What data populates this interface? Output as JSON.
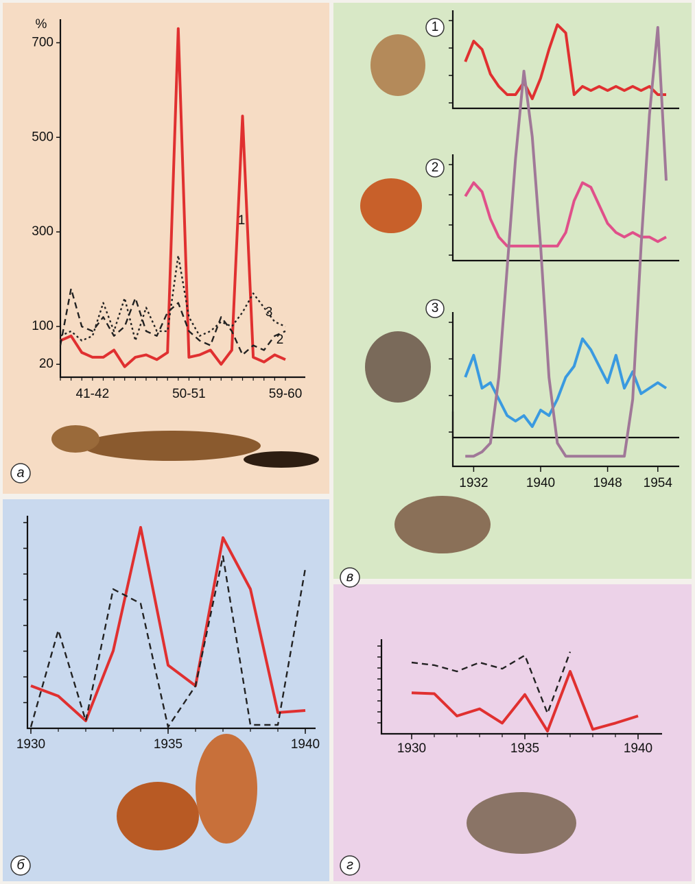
{
  "chart_data": [
    {
      "type": "line",
      "label": "а",
      "y_label": "%",
      "categories": [
        null,
        null,
        null,
        "41-42",
        null,
        null,
        null,
        null,
        null,
        null,
        null,
        null,
        "50-51",
        null,
        null,
        null,
        null,
        null,
        null,
        null,
        null,
        "59-60"
      ],
      "ylim": [
        0,
        760
      ],
      "yticks": [
        20,
        100,
        300,
        500,
        700
      ],
      "series": [
        {
          "name": "1",
          "color": "#e03030",
          "style": "solid",
          "values": [
            70,
            80,
            45,
            35,
            35,
            50,
            15,
            35,
            40,
            30,
            45,
            730,
            35,
            40,
            50,
            20,
            50,
            545,
            35,
            25,
            40,
            30
          ]
        },
        {
          "name": "2",
          "color": "#222222",
          "style": "dashed",
          "values": [
            60,
            180,
            100,
            90,
            120,
            80,
            100,
            160,
            90,
            80,
            130,
            150,
            90,
            70,
            60,
            120,
            90,
            40,
            60,
            50,
            80,
            90
          ]
        },
        {
          "name": "3",
          "color": "#222222",
          "style": "dotted",
          "values": [
            80,
            90,
            70,
            80,
            150,
            90,
            160,
            70,
            140,
            90,
            90,
            250,
            120,
            80,
            90,
            110,
            100,
            130,
            170,
            140,
            110,
            100
          ]
        }
      ]
    },
    {
      "type": "line",
      "label": "в",
      "x": [
        1931,
        1932,
        1933,
        1934,
        1935,
        1936,
        1937,
        1938,
        1939,
        1940,
        1941,
        1942,
        1943,
        1944,
        1945,
        1946,
        1947,
        1948,
        1949,
        1950,
        1951,
        1952,
        1953,
        1954,
        1955
      ],
      "xlim": [
        1930,
        1955
      ],
      "xticks": [
        1932,
        1940,
        1948,
        1954
      ],
      "ylim": [
        0,
        100
      ],
      "series": [
        {
          "name": "1",
          "color": "#e03030",
          "values": [
            50,
            75,
            65,
            35,
            20,
            10,
            10,
            25,
            5,
            30,
            65,
            95,
            85,
            10,
            20,
            15,
            20,
            15,
            20,
            15,
            20,
            15,
            20,
            10,
            10
          ]
        },
        {
          "name": "2",
          "color": "#e0508a",
          "values": [
            65,
            80,
            70,
            40,
            20,
            10,
            10,
            10,
            10,
            10,
            10,
            10,
            25,
            60,
            80,
            75,
            55,
            35,
            25,
            20,
            25,
            20,
            20,
            15,
            20
          ]
        },
        {
          "name": "3",
          "color": "#3a9ae0",
          "values": [
            50,
            70,
            40,
            45,
            30,
            15,
            10,
            15,
            5,
            20,
            15,
            30,
            50,
            60,
            85,
            75,
            60,
            45,
            70,
            40,
            55,
            35,
            40,
            45,
            40
          ]
        },
        {
          "color": "#a07898",
          "values": [
            2,
            2,
            3,
            5,
            20,
            45,
            70,
            90,
            75,
            50,
            20,
            5,
            2,
            2,
            2,
            2,
            2,
            2,
            2,
            2,
            15,
            50,
            80,
            100,
            65
          ]
        }
      ]
    },
    {
      "type": "line",
      "label": "б",
      "x": [
        1930,
        1931,
        1932,
        1933,
        1934,
        1935,
        1936,
        1937,
        1938,
        1939,
        1940
      ],
      "xlim": [
        1930,
        1940
      ],
      "xticks": [
        1930,
        1935,
        1940
      ],
      "ylim": [
        0,
        100
      ],
      "series": [
        {
          "color": "#e03030",
          "style": "solid",
          "values": [
            20,
            15,
            3,
            37,
            97,
            30,
            20,
            92,
            67,
            7,
            8
          ]
        },
        {
          "color": "#222222",
          "style": "dashed",
          "values": [
            0,
            47,
            3,
            67,
            60,
            0,
            20,
            83,
            1,
            1,
            77
          ]
        }
      ]
    },
    {
      "type": "line",
      "label": "г",
      "x": [
        1930,
        1931,
        1932,
        1933,
        1934,
        1935,
        1936,
        1937,
        1938,
        1939,
        1940
      ],
      "xlim": [
        1930,
        1940
      ],
      "xticks": [
        1930,
        1935,
        1940
      ],
      "ylim": [
        0,
        100
      ],
      "series": [
        {
          "color": "#e03030",
          "style": "solid",
          "values": [
            46,
            45,
            20,
            28,
            12,
            44,
            3,
            70,
            5,
            12,
            20
          ]
        },
        {
          "color": "#222222",
          "style": "dashed",
          "values": [
            80,
            77,
            70,
            80,
            73,
            88,
            23,
            92,
            null,
            null,
            null
          ]
        }
      ]
    }
  ]
}
